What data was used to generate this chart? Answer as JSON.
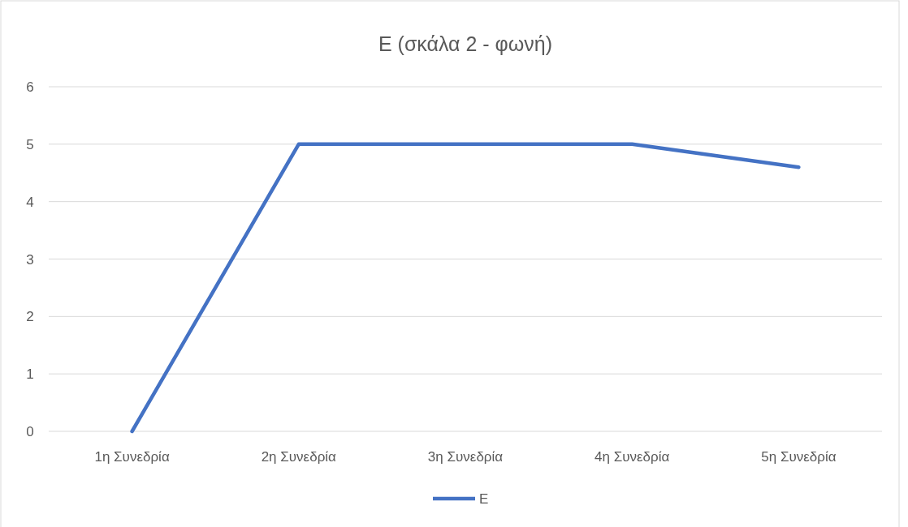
{
  "chart_data": {
    "type": "line",
    "title": "Ε (σκάλα 2 - φωνή)",
    "categories": [
      "1η Συνεδρία",
      "2η Συνεδρία",
      "3η Συνεδρία",
      "4η Συνεδρία",
      "5η Συνεδρία"
    ],
    "series": [
      {
        "name": "Ε",
        "color": "#4472c4",
        "values": [
          0,
          5,
          5,
          5,
          4.6
        ]
      }
    ],
    "ylim": [
      0,
      6
    ],
    "yticks": [
      0,
      1,
      2,
      3,
      4,
      5,
      6
    ],
    "grid": "y",
    "legend": "bottom",
    "marker": "none",
    "line_style": "solid"
  }
}
